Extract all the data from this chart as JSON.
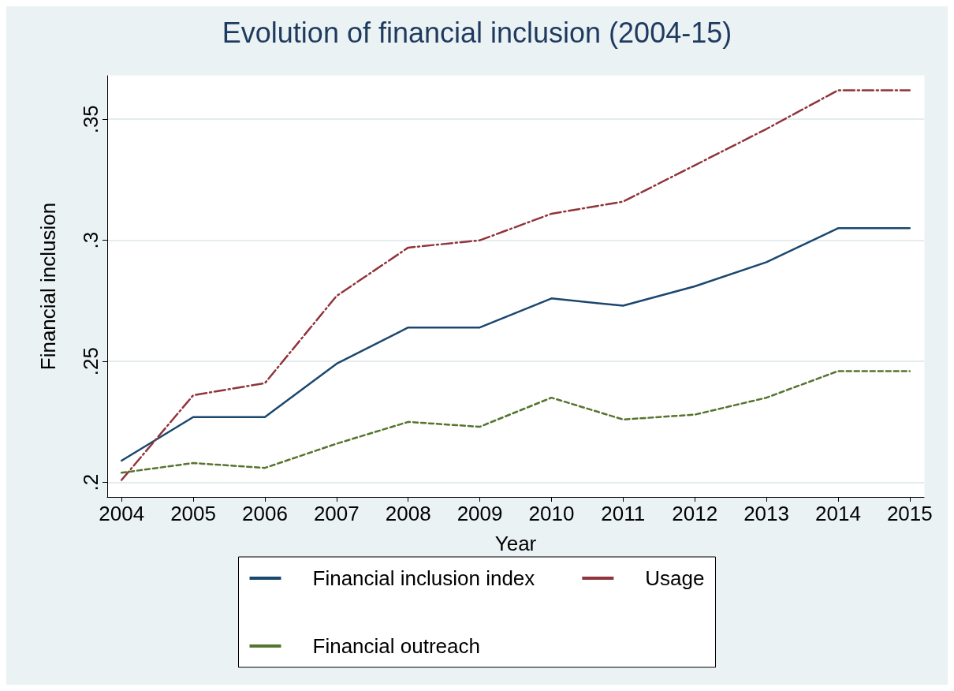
{
  "chart_data": {
    "type": "line",
    "title": "Evolution of financial inclusion (2004-15)",
    "xlabel": "Year",
    "ylabel": "Financial inclusion",
    "x": [
      2004,
      2005,
      2006,
      2007,
      2008,
      2009,
      2010,
      2011,
      2012,
      2013,
      2014,
      2015
    ],
    "series": [
      {
        "name": "Financial inclusion index",
        "color": "#1a476f",
        "line_style": "solid",
        "values": [
          0.209,
          0.227,
          0.227,
          0.249,
          0.264,
          0.264,
          0.276,
          0.273,
          0.281,
          0.291,
          0.305,
          0.305
        ]
      },
      {
        "name": "Usage",
        "color": "#90353b",
        "line_style": "dashdot",
        "values": [
          0.201,
          0.236,
          0.241,
          0.277,
          0.297,
          0.3,
          0.311,
          0.316,
          0.331,
          0.346,
          0.362,
          0.362
        ]
      },
      {
        "name": "Financial outreach",
        "color": "#55752f",
        "line_style": "dashed",
        "values": [
          0.204,
          0.208,
          0.206,
          0.216,
          0.225,
          0.223,
          0.235,
          0.226,
          0.228,
          0.235,
          0.246,
          0.246
        ]
      }
    ],
    "xlim": [
      2003.8,
      2015.2
    ],
    "xticks": [
      2004,
      2005,
      2006,
      2007,
      2008,
      2009,
      2010,
      2011,
      2012,
      2013,
      2014,
      2015
    ],
    "ylim": [
      0.194,
      0.368
    ],
    "yticks": [
      {
        "value": 0.2,
        "label": ".2"
      },
      {
        "value": 0.25,
        "label": ".25"
      },
      {
        "value": 0.3,
        "label": ".3"
      },
      {
        "value": 0.35,
        "label": ".35"
      }
    ],
    "grid": "y",
    "legend": "bottom",
    "marker": "none"
  }
}
